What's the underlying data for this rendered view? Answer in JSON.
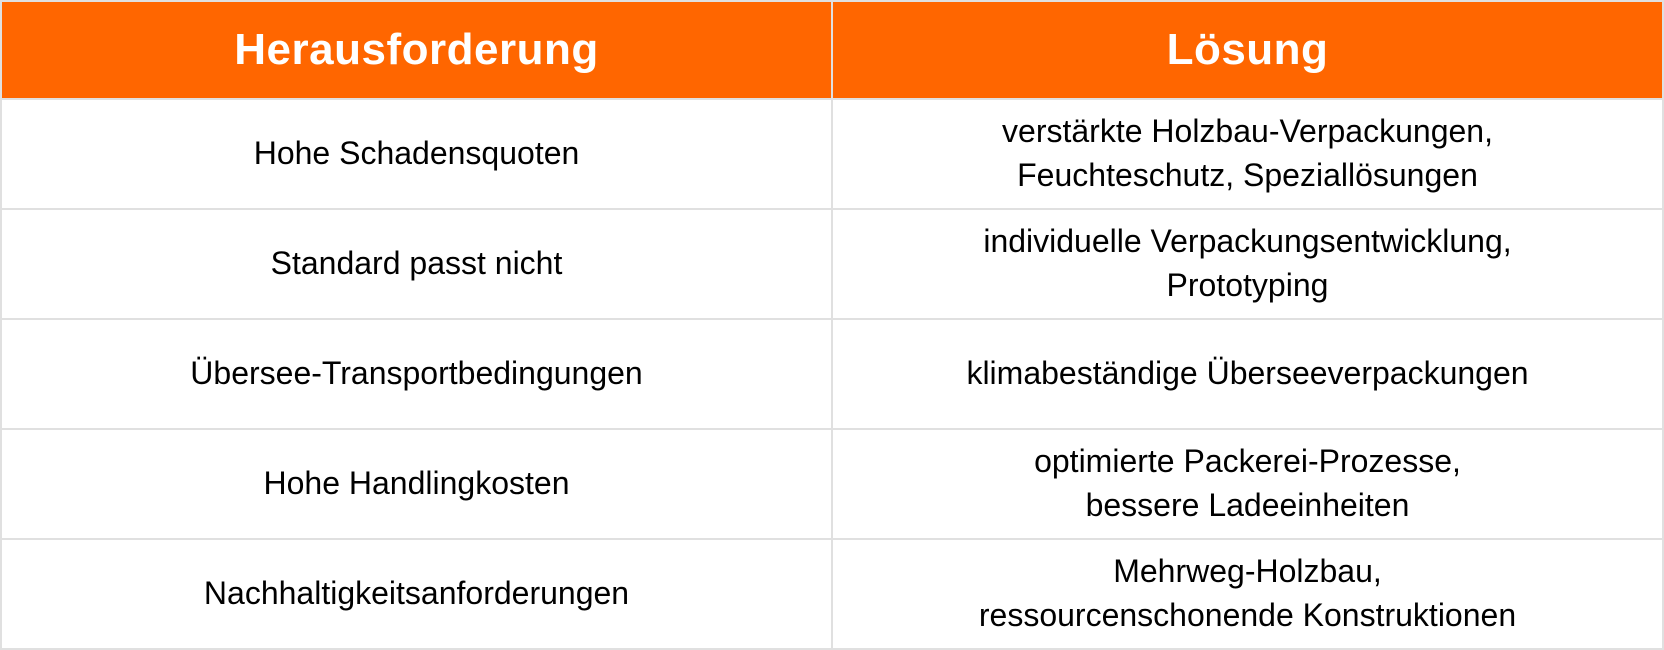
{
  "table": {
    "colors": {
      "header_bg": "#FF6600",
      "header_text": "#FFFFFF",
      "body_bg": "#FFFFFF",
      "body_text": "#000000",
      "border": "#E0E0E0"
    },
    "header": {
      "challenge": "Herausforderung",
      "solution": "Lösung"
    },
    "rows": [
      {
        "challenge": "Hohe Schadensquoten",
        "solution": "verstärkte Holzbau-Verpackungen,\nFeuchteschutz, Speziallösungen"
      },
      {
        "challenge": "Standard passt nicht",
        "solution": "individuelle Verpackungsentwicklung,\nPrototyping"
      },
      {
        "challenge": "Übersee-Transportbedingungen",
        "solution": "klimabeständige Überseeverpackungen"
      },
      {
        "challenge": "Hohe Handlingkosten",
        "solution": "optimierte Packerei-Prozesse,\nbessere Ladeeinheiten"
      },
      {
        "challenge": "Nachhaltigkeitsanforderungen",
        "solution": "Mehrweg-Holzbau,\nressourcenschonende Konstruktionen"
      }
    ]
  }
}
